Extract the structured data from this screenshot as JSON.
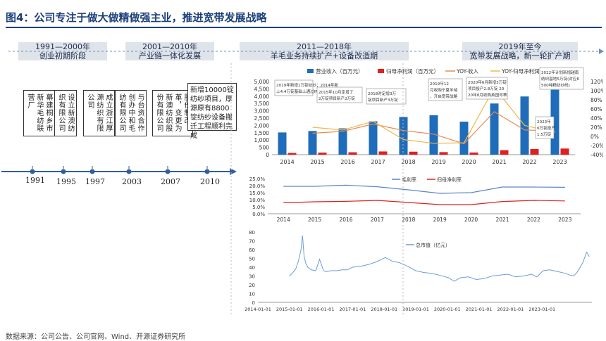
{
  "title": "图4：公司专注于做大做精做强主业，推进宽带发展战略",
  "footer": "数据来源：公司公告、公司官网、Wind、开源证券研究所",
  "timeline": {
    "phases": [
      {
        "period": "1991—2000年",
        "label": "创业初期阶段"
      },
      {
        "period": "2001—2010年",
        "label": "产业链一体化发展"
      },
      {
        "period": "2011—2018年",
        "label": "羊毛业务持续扩产+设备改造期"
      },
      {
        "period": "2019年至今",
        "label": "宽带发展战略，新一轮扩产期"
      }
    ],
    "years": [
      "1991",
      "1995",
      "1997",
      "2003",
      "2007",
      "2010"
    ],
    "events": [
      "幕建桐乡市新华毛纺联营厂",
      "设立新澳纺织有限公司",
      "成立浙江厚源纺织有限公司",
      "与台资合作创办中和毛纺有限公司",
      "股份制改革，变更为新澳纺织股份有限公司",
      "新增10000锭纺纱项目，厚源原有8800锭纺纱设备搬迁工程顺利完成"
    ]
  },
  "annotations": [
    "2019年新增1万锭纺纱；2014年新上4.4万锭基础上通过IPO新增2万锭",
    "2015年10月定增了2万锭项目新产2万锭",
    "2018时定增3万锭项目新产3万锭",
    "2019年12月收购宁夏羊绒，开启宽带战略",
    "2020年6月新增3万锭项目投产2.8万锭 2020年8月收购英国邓蒂",
    "2022年计划新增越南纺织基地5万锭(对应6500吨精纺纱线)",
    "2023年6万锭投产1.5万锭"
  ],
  "chart_data": [
    {
      "type": "bar",
      "categories": [
        "2014",
        "2015",
        "2016",
        "2017",
        "2018",
        "2019",
        "2020",
        "2021",
        "2022",
        "2023"
      ],
      "series": [
        {
          "name": "营业收入（百万元）",
          "kind": "bar",
          "axis": "left",
          "color": "#1f6dba",
          "values": [
            1520,
            1620,
            1800,
            2280,
            2580,
            2700,
            2260,
            3500,
            3980,
            4440
          ]
        },
        {
          "name": "归母净利润（百万元）",
          "kind": "bar",
          "axis": "left",
          "color": "#e02020",
          "values": [
            120,
            145,
            165,
            220,
            205,
            175,
            150,
            310,
            385,
            420
          ]
        },
        {
          "name": "YOY-收入",
          "kind": "line",
          "axis": "right",
          "color": "#e98a4d",
          "values": [
            null,
            7,
            11,
            27,
            13,
            5,
            -16,
            54,
            14,
            12
          ]
        },
        {
          "name": "YOY-归母净利润",
          "kind": "line",
          "axis": "right",
          "color": "#f0b84a",
          "values": [
            null,
            20,
            14,
            33,
            -7,
            -15,
            -14,
            107,
            24,
            9
          ]
        }
      ],
      "yleft": {
        "min": 0,
        "max": 5000,
        "ticks": [
          "0",
          "500",
          "1,000",
          "1,500",
          "2,000",
          "2,500",
          "3,000",
          "3,500",
          "4,000",
          "4,500",
          "5,000"
        ]
      },
      "yright": {
        "min": -40,
        "max": 120,
        "ticks": [
          "-40%",
          "-20%",
          "0%",
          "20%",
          "40%",
          "60%",
          "80%",
          "100%",
          "120%"
        ]
      }
    },
    {
      "type": "line",
      "categories": [
        "2014",
        "2015",
        "2016",
        "2017",
        "2018",
        "2019",
        "2020",
        "2021",
        "2022",
        "2023"
      ],
      "series": [
        {
          "name": "毛利率",
          "color": "#5b86c5",
          "values": [
            19.5,
            19.5,
            20.3,
            19.2,
            17.0,
            14.5,
            15.0,
            19.0,
            19.0,
            18.8
          ]
        },
        {
          "name": "归母净利率",
          "color": "#e02020",
          "values": [
            7.8,
            8.5,
            8.8,
            9.5,
            8.0,
            6.5,
            6.5,
            8.7,
            9.5,
            9.1
          ]
        }
      ],
      "ylim": [
        0,
        25
      ],
      "yticks": [
        "0.0%",
        "5.0%",
        "10.0%",
        "15.0%",
        "20.0%",
        "25.0%"
      ]
    },
    {
      "type": "line",
      "series": [
        {
          "name": "总市值（亿元）",
          "color": "#6e9bd6",
          "x": [
            "2014-12-31",
            "2015-02-01",
            "2015-03-15",
            "2015-04-15",
            "2015-05-15",
            "2015-06-01",
            "2015-06-20",
            "2015-07-10",
            "2015-08-01",
            "2015-09-10",
            "2015-11-01",
            "2015-12-15",
            "2016-01-31",
            "2016-03-01",
            "2016-05-01",
            "2016-07-01",
            "2016-09-01",
            "2016-11-01",
            "2017-01-01",
            "2017-04-01",
            "2017-07-01",
            "2017-10-01",
            "2018-01-15",
            "2018-04-01",
            "2018-07-01",
            "2018-10-01",
            "2019-01-01",
            "2019-04-01",
            "2019-07-01",
            "2019-10-01",
            "2020-01-15",
            "2020-03-20",
            "2020-06-01",
            "2020-09-01",
            "2020-12-01",
            "2021-03-01",
            "2021-06-01",
            "2021-09-01",
            "2021-12-01",
            "2022-03-01",
            "2022-06-01",
            "2022-09-01",
            "2022-11-01",
            "2023-01-15",
            "2023-04-01",
            "2023-07-01",
            "2023-10-01",
            "2023-11-20",
            "2024-01-01",
            "2024-02-10",
            "2024-04-15",
            "2024-06-01",
            "2024-07-01"
          ],
          "values": [
            30,
            33,
            38,
            47,
            60,
            76,
            52,
            44,
            40,
            37,
            36,
            49,
            36,
            35,
            36,
            36,
            37,
            37,
            40,
            41,
            43,
            46,
            51,
            47,
            45,
            41,
            36,
            34,
            33,
            31,
            28,
            24,
            28,
            29,
            26,
            27,
            30,
            31,
            32,
            29,
            30,
            32,
            29,
            36,
            37,
            35,
            33,
            31,
            30,
            34,
            45,
            57,
            52
          ]
        }
      ],
      "ylim": [
        0,
        80
      ],
      "yticks": [
        "0",
        "10",
        "20",
        "30",
        "40",
        "50",
        "60",
        "70",
        "80"
      ],
      "xticks": [
        "2014-01-01",
        "2015-01-01",
        "2016-01-01",
        "2017-01-01",
        "2018-01-01",
        "2019-01-01",
        "2020-01-01",
        "2021-01-01",
        "2022-01-01",
        "2023-01-01"
      ]
    }
  ]
}
